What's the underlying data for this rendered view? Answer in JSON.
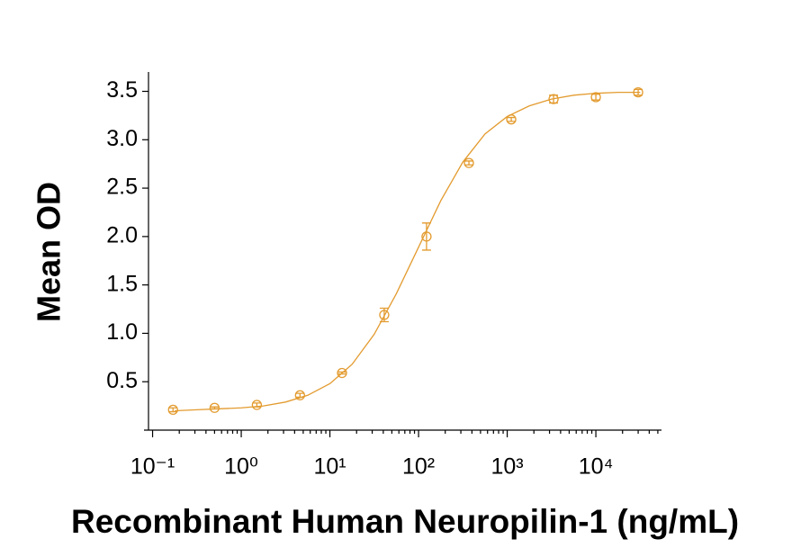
{
  "chart_data": {
    "type": "scatter",
    "xlabel": "Recombinant Human Neuropilin-1 (ng/mL)",
    "ylabel": "Mean OD",
    "color": "#e39b2f",
    "xscale": "log",
    "xlim": [
      0.08,
      55000
    ],
    "ylim": [
      0,
      3.7
    ],
    "xticks": [
      {
        "value": 0.1,
        "label": "10⁻¹"
      },
      {
        "value": 1,
        "label": "10⁰"
      },
      {
        "value": 10,
        "label": "10¹"
      },
      {
        "value": 100,
        "label": "10²"
      },
      {
        "value": 1000,
        "label": "10³"
      },
      {
        "value": 10000,
        "label": "10⁴"
      }
    ],
    "xminorticks": [
      0.2,
      0.3,
      0.4,
      0.5,
      0.6,
      0.7,
      0.8,
      0.9,
      2,
      3,
      4,
      5,
      6,
      7,
      8,
      9,
      20,
      30,
      40,
      50,
      60,
      70,
      80,
      90,
      200,
      300,
      400,
      500,
      600,
      700,
      800,
      900,
      2000,
      3000,
      4000,
      5000,
      6000,
      7000,
      8000,
      9000,
      20000,
      30000,
      40000,
      50000
    ],
    "yticks": [
      0.5,
      {
        "value": 1,
        "label": "1.0"
      },
      1.5,
      {
        "value": 2,
        "label": "2.0"
      },
      2.5,
      {
        "value": 3,
        "label": "3.0"
      },
      3.5
    ],
    "points": {
      "x": [
        0.17,
        0.5,
        1.5,
        4.6,
        13.7,
        41,
        123,
        370,
        1111,
        3333,
        10000,
        30000
      ],
      "values": [
        0.21,
        0.23,
        0.26,
        0.36,
        0.59,
        1.19,
        2.0,
        2.76,
        3.21,
        3.42,
        3.44,
        3.49
      ],
      "errors": [
        0.02,
        0.01,
        0.02,
        0.02,
        0.01,
        0.07,
        0.14,
        0.02,
        0.02,
        0.04,
        0.03,
        0.03
      ]
    },
    "fit": {
      "x": [
        0.178,
        0.316,
        0.562,
        1,
        1.78,
        3.16,
        5.62,
        10,
        17.8,
        31.6,
        56.2,
        100,
        178,
        316,
        562,
        1000,
        1778,
        3162,
        5623,
        10000,
        17783,
        31623
      ],
      "values": [
        0.2,
        0.21,
        0.22,
        0.23,
        0.25,
        0.29,
        0.36,
        0.48,
        0.68,
        0.99,
        1.41,
        1.89,
        2.37,
        2.77,
        3.06,
        3.24,
        3.35,
        3.42,
        3.46,
        3.48,
        3.49,
        3.49
      ]
    }
  }
}
